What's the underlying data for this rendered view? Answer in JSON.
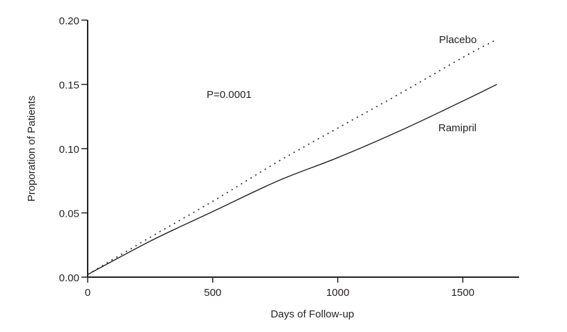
{
  "chart_data": {
    "type": "line",
    "title": "",
    "xlabel": "Days of Follow-up",
    "ylabel": "Proporation of Patients",
    "xlim": [
      0,
      1725
    ],
    "ylim": [
      0,
      0.2
    ],
    "xticks": [
      0,
      500,
      1000,
      1500
    ],
    "xtick_labels": [
      "0",
      "500",
      "1000",
      "1500"
    ],
    "yticks": [
      0,
      0.05,
      0.1,
      0.15,
      0.2
    ],
    "ytick_labels": [
      "0.00",
      "0.05",
      "0.10",
      "0.15",
      "0.20"
    ],
    "grid": false,
    "legend": "none (series labeled inline)",
    "annotations": [
      {
        "text": "P=0.0001",
        "x": 480,
        "y": 0.145
      }
    ],
    "series": [
      {
        "name": "Placebo",
        "style": "dotted",
        "color": "#231f20",
        "x": [
          0,
          250,
          500,
          762,
          1000,
          1250,
          1500,
          1636
        ],
        "y": [
          0.002,
          0.031,
          0.059,
          0.09,
          0.116,
          0.143,
          0.171,
          0.185
        ],
        "label_at": {
          "x": 1400,
          "y": 0.185
        }
      },
      {
        "name": "Ramipril",
        "style": "solid",
        "color": "#231f20",
        "x": [
          0,
          250,
          500,
          762,
          1000,
          1250,
          1500,
          1636
        ],
        "y": [
          0.002,
          0.028,
          0.051,
          0.075,
          0.093,
          0.114,
          0.137,
          0.15
        ],
        "label_at": {
          "x": 1400,
          "y": 0.117
        }
      }
    ]
  }
}
